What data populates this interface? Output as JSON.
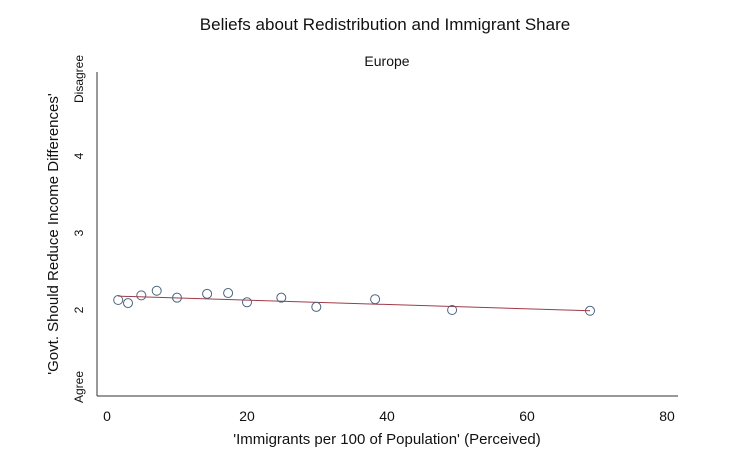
{
  "chart_data": {
    "type": "scatter",
    "title": "Beliefs about Redistribution and Immigrant Share",
    "subtitle": "Europe",
    "xlabel": "'Immigrants per 100 of Population' (Perceived)",
    "ylabel": "'Govt. Should Reduce Income Differences'",
    "xlim": [
      0,
      80
    ],
    "ylim": [
      1,
      5
    ],
    "xticks": [
      0,
      20,
      40,
      60,
      80
    ],
    "yticks": [
      {
        "value": 1,
        "label": "Agree"
      },
      {
        "value": 2,
        "label": "2"
      },
      {
        "value": 3,
        "label": "3"
      },
      {
        "value": 4,
        "label": "4"
      },
      {
        "value": 5,
        "label": "Disagree"
      }
    ],
    "grid": false,
    "points": [
      {
        "x": 1.6,
        "y": 2.13
      },
      {
        "x": 3.0,
        "y": 2.09
      },
      {
        "x": 4.9,
        "y": 2.19
      },
      {
        "x": 7.1,
        "y": 2.25
      },
      {
        "x": 10.0,
        "y": 2.16
      },
      {
        "x": 14.3,
        "y": 2.21
      },
      {
        "x": 17.3,
        "y": 2.22
      },
      {
        "x": 20.0,
        "y": 2.1
      },
      {
        "x": 24.9,
        "y": 2.16
      },
      {
        "x": 29.9,
        "y": 2.04
      },
      {
        "x": 38.3,
        "y": 2.14
      },
      {
        "x": 49.3,
        "y": 2.0
      },
      {
        "x": 69.0,
        "y": 1.99
      }
    ],
    "fit_line": [
      {
        "x": 1.6,
        "y": 2.18
      },
      {
        "x": 69.0,
        "y": 1.99
      }
    ],
    "colors": {
      "points": "#4a6580",
      "fit_line": "#a03a48",
      "axis": "#333333"
    }
  }
}
